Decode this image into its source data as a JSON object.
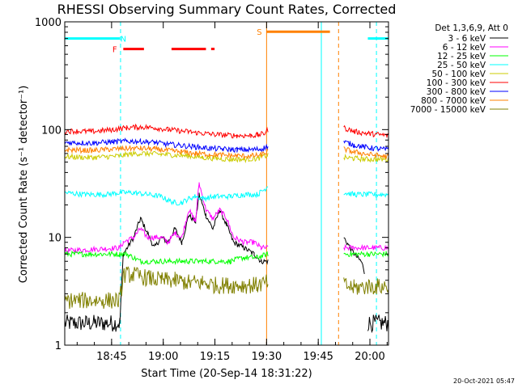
{
  "chart_data": {
    "type": "line",
    "title": "RHESSI Observing Summary Count Rates, Corrected",
    "xlabel": "Start Time (20-Sep-14 18:31:22)",
    "ylabel": "Corrected Count Rate (s⁻¹ detector⁻¹)",
    "ylog": true,
    "xlim": [
      0,
      94
    ],
    "ylim": [
      1,
      1000
    ],
    "x_ticks": [
      {
        "x": 13.6,
        "label": "18:45"
      },
      {
        "x": 28.6,
        "label": "19:00"
      },
      {
        "x": 43.6,
        "label": "19:15"
      },
      {
        "x": 58.6,
        "label": "19:30"
      },
      {
        "x": 73.6,
        "label": "19:45"
      },
      {
        "x": 88.6,
        "label": "20:00"
      }
    ],
    "y_ticks": [
      {
        "y": 1,
        "label": "1"
      },
      {
        "y": 10,
        "label": "10"
      },
      {
        "y": 100,
        "label": "100"
      },
      {
        "y": 1000,
        "label": "1000"
      }
    ],
    "legend": {
      "header": "Det 1,3,6,9, Att 0",
      "placement": "right"
    },
    "series": [
      {
        "name": "3 - 6 keV",
        "color": "#000000",
        "points": [
          [
            0,
            1.6
          ],
          [
            16,
            1.6
          ],
          [
            17,
            7
          ],
          [
            20,
            10
          ],
          [
            22,
            15
          ],
          [
            24,
            11
          ],
          [
            26,
            8
          ],
          [
            28,
            10
          ],
          [
            30,
            9
          ],
          [
            32,
            12
          ],
          [
            34,
            9
          ],
          [
            36,
            16
          ],
          [
            38,
            14
          ],
          [
            39,
            25
          ],
          [
            41,
            16
          ],
          [
            43,
            12
          ],
          [
            45,
            18
          ],
          [
            47,
            13
          ],
          [
            49,
            9
          ],
          [
            52,
            8
          ],
          [
            55,
            7
          ],
          [
            57,
            6
          ],
          [
            59,
            6
          ],
          null,
          [
            81,
            10
          ],
          [
            84,
            7
          ],
          [
            86,
            6
          ],
          [
            87,
            5
          ],
          null,
          [
            88,
            1.6
          ],
          [
            94,
            1.6
          ]
        ]
      },
      {
        "name": "6 - 12 keV",
        "color": "#ff00ff",
        "points": [
          [
            0,
            7.5
          ],
          [
            16,
            8
          ],
          [
            17,
            9
          ],
          [
            20,
            10
          ],
          [
            22,
            12
          ],
          [
            24,
            10
          ],
          [
            26,
            10
          ],
          [
            28,
            10
          ],
          [
            30,
            9
          ],
          [
            32,
            11
          ],
          [
            34,
            10
          ],
          [
            36,
            18
          ],
          [
            38,
            14
          ],
          [
            39,
            32
          ],
          [
            41,
            18
          ],
          [
            43,
            15
          ],
          [
            45,
            18
          ],
          [
            47,
            15
          ],
          [
            49,
            10
          ],
          [
            52,
            9
          ],
          [
            55,
            9
          ],
          [
            57,
            8
          ],
          [
            59,
            8
          ],
          null,
          [
            81,
            8
          ],
          [
            84,
            8
          ],
          [
            88,
            8
          ],
          [
            94,
            8
          ]
        ]
      },
      {
        "name": "12 - 25 keV",
        "color": "#00ff00",
        "points": [
          [
            0,
            7
          ],
          [
            16,
            7
          ],
          [
            18,
            7
          ],
          [
            22,
            6
          ],
          [
            26,
            6
          ],
          [
            30,
            6
          ],
          [
            34,
            6
          ],
          [
            36,
            6
          ],
          [
            40,
            6
          ],
          [
            44,
            6
          ],
          [
            48,
            6
          ],
          [
            52,
            6.5
          ],
          [
            56,
            6.5
          ],
          [
            59,
            7
          ],
          null,
          [
            81,
            7
          ],
          [
            84,
            7
          ],
          [
            88,
            7
          ],
          [
            94,
            7
          ]
        ]
      },
      {
        "name": "25 - 50 keV",
        "color": "#00ffff",
        "points": [
          [
            0,
            26
          ],
          [
            6,
            25
          ],
          [
            12,
            25
          ],
          [
            16,
            26
          ],
          [
            20,
            26
          ],
          [
            24,
            25
          ],
          [
            28,
            24
          ],
          [
            30,
            22
          ],
          [
            32,
            21
          ],
          [
            34,
            21
          ],
          [
            36,
            23
          ],
          [
            38,
            24
          ],
          [
            40,
            23
          ],
          [
            44,
            24
          ],
          [
            48,
            24
          ],
          [
            52,
            25
          ],
          [
            56,
            25
          ],
          [
            58,
            28
          ],
          [
            59,
            30
          ],
          null,
          [
            81,
            26
          ],
          [
            84,
            25
          ],
          [
            88,
            25
          ],
          [
            94,
            25
          ]
        ]
      },
      {
        "name": "50 - 100 keV",
        "color": "#cccc00",
        "points": [
          [
            0,
            56
          ],
          [
            8,
            55
          ],
          [
            16,
            57
          ],
          [
            20,
            60
          ],
          [
            24,
            60
          ],
          [
            28,
            59
          ],
          [
            32,
            58
          ],
          [
            36,
            57
          ],
          [
            40,
            55
          ],
          [
            44,
            54
          ],
          [
            48,
            53
          ],
          [
            52,
            53
          ],
          [
            56,
            54
          ],
          [
            59,
            58
          ],
          null,
          [
            81,
            55
          ],
          [
            84,
            54
          ],
          [
            88,
            53
          ],
          [
            94,
            53
          ]
        ]
      },
      {
        "name": "100 - 300 keV",
        "color": "#ff0000",
        "points": [
          [
            0,
            97
          ],
          [
            8,
            96
          ],
          [
            14,
            100
          ],
          [
            18,
            104
          ],
          [
            22,
            106
          ],
          [
            26,
            104
          ],
          [
            30,
            100
          ],
          [
            34,
            97
          ],
          [
            38,
            94
          ],
          [
            42,
            91
          ],
          [
            46,
            89
          ],
          [
            50,
            88
          ],
          [
            54,
            88
          ],
          [
            56,
            89
          ],
          [
            58,
            92
          ],
          [
            59,
            100
          ],
          null,
          [
            81,
            104
          ],
          [
            84,
            96
          ],
          [
            88,
            92
          ],
          [
            94,
            88
          ]
        ]
      },
      {
        "name": "300 - 800 keV",
        "color": "#0000ff",
        "points": [
          [
            0,
            76
          ],
          [
            8,
            75
          ],
          [
            14,
            77
          ],
          [
            18,
            78
          ],
          [
            22,
            78
          ],
          [
            26,
            76
          ],
          [
            30,
            73
          ],
          [
            34,
            71
          ],
          [
            38,
            69
          ],
          [
            42,
            67
          ],
          [
            46,
            66
          ],
          [
            50,
            65
          ],
          [
            54,
            65
          ],
          [
            57,
            66
          ],
          [
            59,
            70
          ],
          null,
          [
            81,
            77
          ],
          [
            84,
            72
          ],
          [
            88,
            68
          ],
          [
            94,
            65
          ]
        ]
      },
      {
        "name": "800 - 7000 keV",
        "color": "#ff8000",
        "points": [
          [
            0,
            65
          ],
          [
            8,
            64
          ],
          [
            14,
            66
          ],
          [
            18,
            67
          ],
          [
            22,
            67
          ],
          [
            26,
            66
          ],
          [
            30,
            64
          ],
          [
            34,
            62
          ],
          [
            38,
            60
          ],
          [
            42,
            59
          ],
          [
            46,
            58
          ],
          [
            50,
            57
          ],
          [
            54,
            57
          ],
          [
            57,
            58
          ],
          [
            59,
            63
          ],
          null,
          [
            81,
            66
          ],
          [
            84,
            62
          ],
          [
            88,
            59
          ],
          [
            94,
            56
          ]
        ]
      },
      {
        "name": "7000 - 15000 keV",
        "color": "#808000",
        "points": [
          [
            0,
            2.6
          ],
          [
            16,
            2.6
          ],
          [
            17,
            4.5
          ],
          [
            20,
            4.5
          ],
          [
            24,
            4.2
          ],
          [
            28,
            4
          ],
          [
            32,
            4
          ],
          [
            36,
            3.8
          ],
          [
            40,
            3.8
          ],
          [
            44,
            3.6
          ],
          [
            48,
            3.6
          ],
          [
            52,
            3.6
          ],
          [
            56,
            3.6
          ],
          [
            59,
            3.8
          ],
          null,
          [
            81,
            3.6
          ],
          [
            84,
            3.4
          ],
          [
            88,
            3.5
          ],
          [
            94,
            3.5
          ]
        ]
      }
    ],
    "annotations": [
      {
        "label": "N",
        "color": "#00ffff",
        "segments": [
          [
            0,
            16
          ],
          [
            88,
            94
          ]
        ],
        "level": 700,
        "label_x": 17
      },
      {
        "label": "F",
        "color": "#ff0000",
        "segments": [
          [
            17,
            23
          ],
          [
            31,
            41
          ],
          [
            42.5,
            43.5
          ]
        ],
        "level": 560,
        "label_x": 14.5
      },
      {
        "label": "S",
        "color": "#ff8000",
        "segments": [
          [
            58.6,
            77
          ]
        ],
        "level": 810,
        "label_x": 56.5
      }
    ],
    "vlines": [
      {
        "x": 0,
        "color": "#00ffff",
        "dash": false
      },
      {
        "x": 16.2,
        "color": "#00ffff",
        "dash": true
      },
      {
        "x": 58.6,
        "color": "#ff8000",
        "dash": false
      },
      {
        "x": 74.5,
        "color": "#00ffff",
        "dash": false
      },
      {
        "x": 79.5,
        "color": "#ff8000",
        "dash": true
      },
      {
        "x": 90.5,
        "color": "#00ffff",
        "dash": true
      }
    ]
  },
  "timestamp": "20-Oct-2021 05:47"
}
